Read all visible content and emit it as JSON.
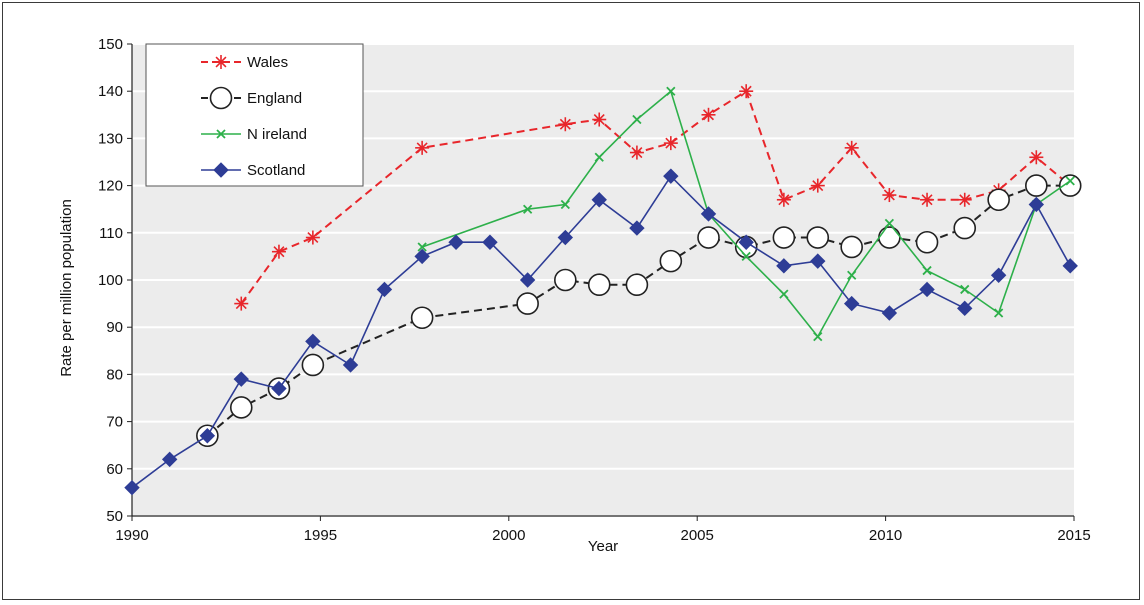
{
  "chart_data": {
    "type": "line",
    "xlabel": "Year",
    "ylabel": "Rate per million population",
    "xlim": [
      1990,
      2015
    ],
    "ylim": [
      50,
      150
    ],
    "x_ticks": [
      1990,
      1995,
      2000,
      2005,
      2010,
      2015
    ],
    "y_ticks": [
      50,
      60,
      70,
      80,
      90,
      100,
      110,
      120,
      130,
      140,
      150
    ],
    "grid": "horizontal",
    "legend_position": "top-left",
    "series": [
      {
        "name": "Wales",
        "color": "#e8262b",
        "line_style": "dashed",
        "marker": "asterisk",
        "points": [
          [
            1992.9,
            95
          ],
          [
            1993.9,
            106
          ],
          [
            1994.8,
            109
          ],
          [
            1997.7,
            128
          ],
          [
            2001.5,
            133
          ],
          [
            2002.4,
            134
          ],
          [
            2003.4,
            127
          ],
          [
            2004.3,
            129
          ],
          [
            2005.3,
            135
          ],
          [
            2006.3,
            140
          ],
          [
            2007.3,
            117
          ],
          [
            2008.2,
            120
          ],
          [
            2009.1,
            128
          ],
          [
            2010.1,
            118
          ],
          [
            2011.1,
            117
          ],
          [
            2012.1,
            117
          ],
          [
            2013.0,
            119
          ],
          [
            2014.0,
            126
          ],
          [
            2014.9,
            120
          ]
        ]
      },
      {
        "name": "England",
        "color": "#222222",
        "line_style": "dashed",
        "marker": "open-circle",
        "points": [
          [
            1992.0,
            67
          ],
          [
            1992.9,
            73
          ],
          [
            1993.9,
            77
          ],
          [
            1994.8,
            82
          ],
          [
            1997.7,
            92
          ],
          [
            2000.5,
            95
          ],
          [
            2001.5,
            100
          ],
          [
            2002.4,
            99
          ],
          [
            2003.4,
            99
          ],
          [
            2004.3,
            104
          ],
          [
            2005.3,
            109
          ],
          [
            2006.3,
            107
          ],
          [
            2007.3,
            109
          ],
          [
            2008.2,
            109
          ],
          [
            2009.1,
            107
          ],
          [
            2010.1,
            109
          ],
          [
            2011.1,
            108
          ],
          [
            2012.1,
            111
          ],
          [
            2013.0,
            117
          ],
          [
            2014.0,
            120
          ],
          [
            2014.9,
            120
          ]
        ]
      },
      {
        "name": "N ireland",
        "color": "#2db04a",
        "line_style": "solid",
        "marker": "x",
        "points": [
          [
            1997.7,
            107
          ],
          [
            2000.5,
            115
          ],
          [
            2001.5,
            116
          ],
          [
            2002.4,
            126
          ],
          [
            2003.4,
            134
          ],
          [
            2004.3,
            140
          ],
          [
            2005.3,
            114
          ],
          [
            2006.3,
            105
          ],
          [
            2007.3,
            97
          ],
          [
            2008.2,
            88
          ],
          [
            2009.1,
            101
          ],
          [
            2010.1,
            112
          ],
          [
            2011.1,
            102
          ],
          [
            2012.1,
            98
          ],
          [
            2013.0,
            93
          ],
          [
            2014.0,
            116
          ],
          [
            2014.9,
            121
          ]
        ]
      },
      {
        "name": "Scotland",
        "color": "#2e3d96",
        "line_style": "solid",
        "marker": "filled-diamond",
        "points": [
          [
            1990.0,
            56
          ],
          [
            1991.0,
            62
          ],
          [
            1992.0,
            67
          ],
          [
            1992.9,
            79
          ],
          [
            1993.9,
            77
          ],
          [
            1994.8,
            87
          ],
          [
            1995.8,
            82
          ],
          [
            1996.7,
            98
          ],
          [
            1997.7,
            105
          ],
          [
            1998.6,
            108
          ],
          [
            1999.5,
            108
          ],
          [
            2000.5,
            100
          ],
          [
            2001.5,
            109
          ],
          [
            2002.4,
            117
          ],
          [
            2003.4,
            111
          ],
          [
            2004.3,
            122
          ],
          [
            2005.3,
            114
          ],
          [
            2006.3,
            108
          ],
          [
            2007.3,
            103
          ],
          [
            2008.2,
            104
          ],
          [
            2009.1,
            95
          ],
          [
            2010.1,
            93
          ],
          [
            2011.1,
            98
          ],
          [
            2012.1,
            94
          ],
          [
            2013.0,
            101
          ],
          [
            2014.0,
            116
          ],
          [
            2014.9,
            103
          ]
        ]
      }
    ]
  }
}
